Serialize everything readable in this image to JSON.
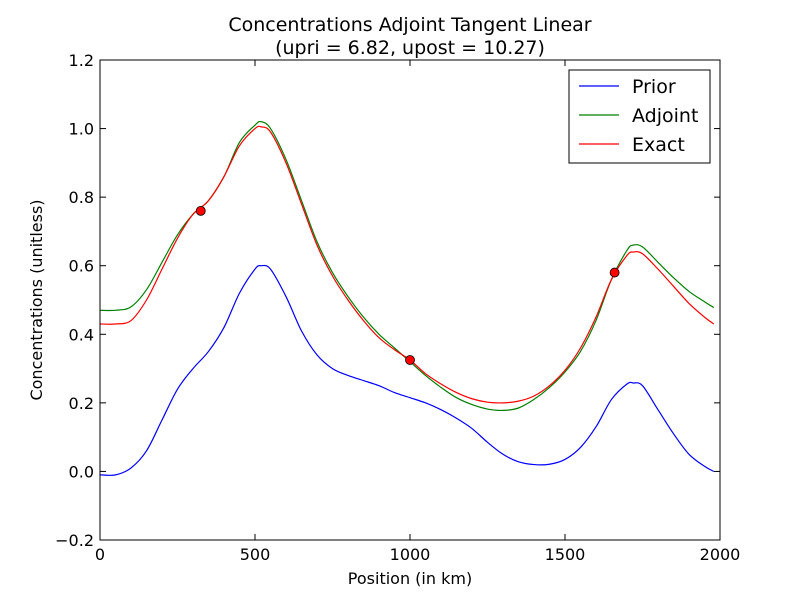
{
  "chart_data": {
    "type": "line",
    "title": "Concentrations Adjoint Tangent Linear",
    "subtitle": "(upri = 6.82, upost = 10.27)",
    "xlabel": "Position (in km)",
    "ylabel": "Concentrations (unitless)",
    "xlim": [
      0,
      2000
    ],
    "ylim": [
      -0.2,
      1.2
    ],
    "xticks": [
      0,
      500,
      1000,
      1500,
      2000
    ],
    "xtick_labels": [
      "0",
      "500",
      "1000",
      "1500",
      "2000"
    ],
    "yticks": [
      -0.2,
      0.0,
      0.2,
      0.4,
      0.6,
      0.8,
      1.0,
      1.2
    ],
    "ytick_labels": [
      "−0.2",
      "0.0",
      "0.2",
      "0.4",
      "0.6",
      "0.8",
      "1.0",
      "1.2"
    ],
    "grid": false,
    "legend_position": "top-right",
    "x": [
      0,
      50,
      100,
      150,
      200,
      250,
      300,
      350,
      400,
      450,
      500,
      520,
      550,
      600,
      650,
      700,
      750,
      800,
      850,
      900,
      950,
      1000,
      1050,
      1100,
      1150,
      1200,
      1250,
      1300,
      1350,
      1400,
      1450,
      1500,
      1550,
      1600,
      1650,
      1700,
      1720,
      1750,
      1800,
      1850,
      1900,
      1950,
      1980
    ],
    "series": [
      {
        "name": "Prior",
        "color": "#0000ff",
        "values": [
          -0.01,
          -0.01,
          0.01,
          0.06,
          0.15,
          0.24,
          0.3,
          0.35,
          0.42,
          0.52,
          0.59,
          0.6,
          0.59,
          0.51,
          0.41,
          0.34,
          0.3,
          0.28,
          0.265,
          0.25,
          0.23,
          0.215,
          0.2,
          0.18,
          0.155,
          0.125,
          0.085,
          0.05,
          0.028,
          0.02,
          0.021,
          0.035,
          0.07,
          0.13,
          0.21,
          0.255,
          0.258,
          0.25,
          0.18,
          0.11,
          0.05,
          0.015,
          0.0
        ]
      },
      {
        "name": "Adjoint",
        "color": "#008000",
        "values": [
          0.47,
          0.47,
          0.48,
          0.53,
          0.61,
          0.69,
          0.75,
          0.79,
          0.86,
          0.96,
          1.01,
          1.02,
          1.0,
          0.91,
          0.79,
          0.67,
          0.58,
          0.51,
          0.45,
          0.4,
          0.36,
          0.32,
          0.28,
          0.245,
          0.215,
          0.195,
          0.182,
          0.178,
          0.185,
          0.21,
          0.245,
          0.29,
          0.35,
          0.44,
          0.56,
          0.645,
          0.66,
          0.655,
          0.61,
          0.565,
          0.525,
          0.495,
          0.478
        ]
      },
      {
        "name": "Exact",
        "color": "#ff0000",
        "values": [
          0.43,
          0.43,
          0.44,
          0.5,
          0.59,
          0.68,
          0.75,
          0.79,
          0.86,
          0.95,
          1.0,
          1.005,
          0.99,
          0.9,
          0.78,
          0.66,
          0.57,
          0.5,
          0.44,
          0.39,
          0.355,
          0.325,
          0.285,
          0.255,
          0.23,
          0.212,
          0.202,
          0.2,
          0.205,
          0.22,
          0.25,
          0.295,
          0.36,
          0.45,
          0.56,
          0.63,
          0.64,
          0.635,
          0.59,
          0.54,
          0.49,
          0.45,
          0.43
        ]
      }
    ],
    "observations": {
      "color": "#ff0000",
      "points": [
        {
          "x": 325,
          "y": 0.76
        },
        {
          "x": 1000,
          "y": 0.325
        },
        {
          "x": 1660,
          "y": 0.58
        }
      ]
    }
  }
}
